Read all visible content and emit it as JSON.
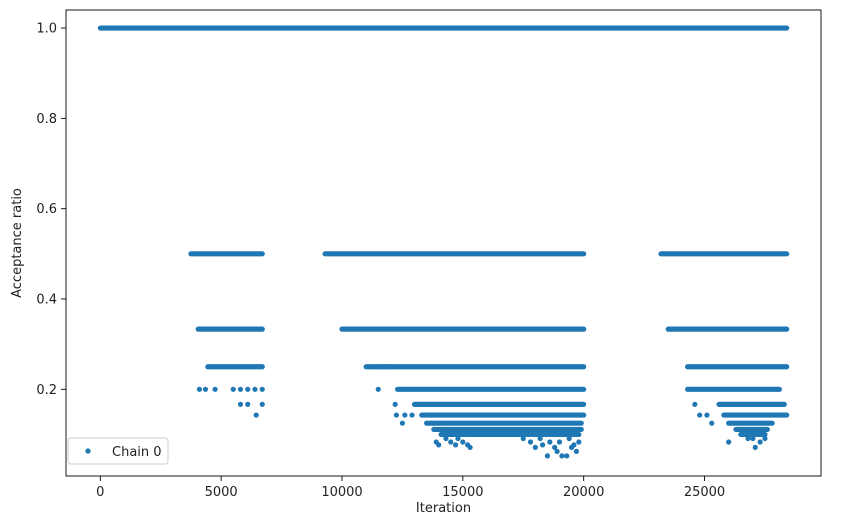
{
  "chart_data": {
    "type": "scatter",
    "title": "",
    "xlabel": "Iteration",
    "ylabel": "Acceptance ratio",
    "xlim": [
      -1420,
      29820
    ],
    "ylim": [
      0.008,
      1.04
    ],
    "xticks": [
      0,
      5000,
      10000,
      15000,
      20000,
      25000
    ],
    "yticks": [
      0.2,
      0.4,
      0.6,
      0.8,
      1.0
    ],
    "xtick_labels": [
      "0",
      "5000",
      "10000",
      "15000",
      "20000",
      "25000"
    ],
    "ytick_labels": [
      "0.2",
      "0.4",
      "0.6",
      "0.8",
      "1.0"
    ],
    "grid": false,
    "legend_position": "lower-left",
    "series": [
      {
        "name": "Chain 0",
        "color": "#1f77b4",
        "marker": "circle",
        "continuous_bands": [
          {
            "y": 1.0,
            "x_ranges": [
              [
                0,
                28400
              ]
            ]
          },
          {
            "y": 0.5,
            "x_ranges": [
              [
                3750,
                6700
              ],
              [
                9300,
                20000
              ],
              [
                23200,
                28400
              ]
            ]
          },
          {
            "y": 0.3333,
            "x_ranges": [
              [
                4050,
                6700
              ],
              [
                10000,
                20000
              ],
              [
                23500,
                28400
              ]
            ]
          },
          {
            "y": 0.25,
            "x_ranges": [
              [
                4450,
                6700
              ],
              [
                11000,
                20000
              ],
              [
                24300,
                28400
              ]
            ]
          },
          {
            "y": 0.2,
            "x_ranges": [
              [
                12300,
                20000
              ],
              [
                24300,
                28100
              ]
            ]
          },
          {
            "y": 0.1667,
            "x_ranges": [
              [
                13000,
                20000
              ],
              [
                25600,
                28300
              ]
            ]
          },
          {
            "y": 0.1429,
            "x_ranges": [
              [
                13300,
                20000
              ],
              [
                25800,
                28400
              ]
            ]
          },
          {
            "y": 0.125,
            "x_ranges": [
              [
                13500,
                19900
              ],
              [
                26000,
                27800
              ]
            ]
          },
          {
            "y": 0.1111,
            "x_ranges": [
              [
                13800,
                19900
              ],
              [
                26300,
                27600
              ]
            ]
          },
          {
            "y": 0.1,
            "x_ranges": [
              [
                14100,
                19800
              ],
              [
                26500,
                27500
              ]
            ]
          }
        ],
        "points": [
          {
            "x": 4100,
            "y": 0.2
          },
          {
            "x": 4350,
            "y": 0.2
          },
          {
            "x": 4750,
            "y": 0.2
          },
          {
            "x": 5500,
            "y": 0.2
          },
          {
            "x": 5800,
            "y": 0.2
          },
          {
            "x": 6100,
            "y": 0.2
          },
          {
            "x": 6400,
            "y": 0.2
          },
          {
            "x": 6700,
            "y": 0.2
          },
          {
            "x": 5800,
            "y": 0.1667
          },
          {
            "x": 6100,
            "y": 0.1667
          },
          {
            "x": 6700,
            "y": 0.1667
          },
          {
            "x": 6450,
            "y": 0.1429
          },
          {
            "x": 11500,
            "y": 0.2
          },
          {
            "x": 11700,
            "y": 0.25
          },
          {
            "x": 11900,
            "y": 0.25
          },
          {
            "x": 12200,
            "y": 0.1667
          },
          {
            "x": 12250,
            "y": 0.1429
          },
          {
            "x": 12500,
            "y": 0.125
          },
          {
            "x": 12600,
            "y": 0.1429
          },
          {
            "x": 12900,
            "y": 0.1429
          },
          {
            "x": 14300,
            "y": 0.0909
          },
          {
            "x": 14500,
            "y": 0.0833
          },
          {
            "x": 14000,
            "y": 0.0769
          },
          {
            "x": 14800,
            "y": 0.0909
          },
          {
            "x": 15200,
            "y": 0.0769
          },
          {
            "x": 15000,
            "y": 0.0833
          },
          {
            "x": 15300,
            "y": 0.0714
          },
          {
            "x": 13900,
            "y": 0.0833
          },
          {
            "x": 14700,
            "y": 0.0769
          },
          {
            "x": 17300,
            "y": 0.1
          },
          {
            "x": 17500,
            "y": 0.0909
          },
          {
            "x": 17800,
            "y": 0.0833
          },
          {
            "x": 18200,
            "y": 0.0909
          },
          {
            "x": 18300,
            "y": 0.0769
          },
          {
            "x": 18600,
            "y": 0.0833
          },
          {
            "x": 18500,
            "y": 0.0526
          },
          {
            "x": 18800,
            "y": 0.0714
          },
          {
            "x": 19000,
            "y": 0.0833
          },
          {
            "x": 19100,
            "y": 0.0526
          },
          {
            "x": 19300,
            "y": 0.0526
          },
          {
            "x": 19400,
            "y": 0.0909
          },
          {
            "x": 19600,
            "y": 0.0769
          },
          {
            "x": 19700,
            "y": 0.0625
          },
          {
            "x": 19800,
            "y": 0.0833
          },
          {
            "x": 18000,
            "y": 0.0714
          },
          {
            "x": 18900,
            "y": 0.0625
          },
          {
            "x": 19500,
            "y": 0.0714
          },
          {
            "x": 24600,
            "y": 0.1667
          },
          {
            "x": 24800,
            "y": 0.1429
          },
          {
            "x": 25100,
            "y": 0.1429
          },
          {
            "x": 25300,
            "y": 0.125
          },
          {
            "x": 26000,
            "y": 0.0833
          },
          {
            "x": 27000,
            "y": 0.0909
          },
          {
            "x": 27100,
            "y": 0.0714
          },
          {
            "x": 27300,
            "y": 0.0833
          },
          {
            "x": 27500,
            "y": 0.0909
          },
          {
            "x": 26800,
            "y": 0.0909
          }
        ]
      }
    ]
  }
}
